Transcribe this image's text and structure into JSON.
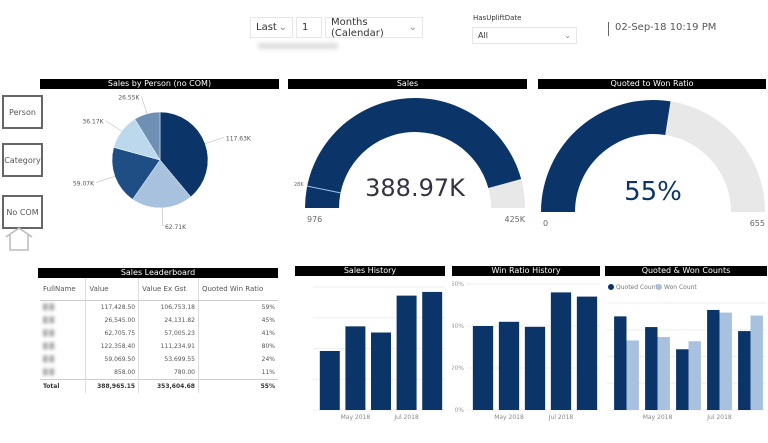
{
  "filters": {
    "period_mode": "Last",
    "period_count": "1",
    "period_unit": "Months (Calendar)",
    "uplift_label": "HasUpliftDate",
    "uplift_value": "All",
    "timestamp": "02-Sep-18 10:19 PM"
  },
  "slicers": [
    {
      "label": "Person"
    },
    {
      "label": "Category"
    },
    {
      "label": "No COM"
    }
  ],
  "pie": {
    "title": "Sales by Person (no COM)",
    "slices": [
      {
        "value": 117.63,
        "label": "117.63K",
        "color": "#0b3468"
      },
      {
        "value": 62.71,
        "label": "62.71K",
        "color": "#a7c1df"
      },
      {
        "value": 59.07,
        "label": "59.07K",
        "color": "#1f4e85"
      },
      {
        "value": 36.17,
        "label": "36.17K",
        "color": "#bcd8ec"
      },
      {
        "value": 26.55,
        "label": "26.55K",
        "color": "#6f8fb5"
      }
    ]
  },
  "sales_gauge": {
    "title": "Sales",
    "value": 388.97,
    "value_label": "388.97K",
    "min": 976,
    "min_label": "976",
    "max": 425000,
    "max_label": "425K",
    "target_label": "28K",
    "target": 28000,
    "fill_color": "#0b3468",
    "track_color": "#e8e8e8"
  },
  "ratio_gauge": {
    "title": "Quoted to Won Ratio",
    "value_label": "55%",
    "fill_fraction": 0.55,
    "min_label": "0",
    "max_label": "655"
  },
  "leaderboard": {
    "title": "Sales Leaderboard",
    "columns": [
      "FullName",
      "Value",
      "Value Ex Gst",
      "Quoted Win Ratio"
    ],
    "rows": [
      [
        "117,428.50",
        "106,753.18",
        "59%"
      ],
      [
        "26,545.00",
        "24,131.82",
        "45%"
      ],
      [
        "62,705.75",
        "57,005.23",
        "41%"
      ],
      [
        "122,358.40",
        "111,234.91",
        "80%"
      ],
      [
        "59,069.50",
        "53,699.55",
        "24%"
      ],
      [
        "858.00",
        "780.00",
        "11%"
      ]
    ],
    "total": [
      "Total",
      "388,965.15",
      "353,604.68",
      "55%"
    ]
  },
  "chart_data": [
    {
      "type": "bar",
      "title": "Sales History",
      "x_ticks": [
        "May 2018",
        "Jul 2018"
      ],
      "series": [
        {
          "values": [
            0.48,
            0.68,
            0.63,
            0.93,
            0.96
          ]
        }
      ],
      "ylim": [
        0,
        1
      ],
      "color": "#0b3468"
    },
    {
      "type": "bar",
      "title": "Win Ratio History",
      "x_ticks": [
        "May 2018",
        "Jul 2018"
      ],
      "y_ticks": [
        "0%",
        "20%",
        "40%",
        "60%"
      ],
      "ylim": [
        0,
        60
      ],
      "series": [
        {
          "values": [
            40,
            42,
            39.6,
            56,
            54
          ]
        }
      ],
      "color": "#0b3468"
    },
    {
      "type": "bar",
      "title": "Quoted & Won Counts",
      "x_ticks": [
        "May 2018",
        "Jul 2018"
      ],
      "ylim": [
        0,
        40
      ],
      "legend": "top-left",
      "series": [
        {
          "name": "Quoted Count",
          "values": [
            35,
            31,
            22.7,
            37.4,
            29.5
          ],
          "color": "#0b3468"
        },
        {
          "name": "Won Count",
          "values": [
            26,
            27.3,
            25.7,
            36.4,
            35.3
          ],
          "color": "#a7c1df"
        }
      ]
    }
  ]
}
